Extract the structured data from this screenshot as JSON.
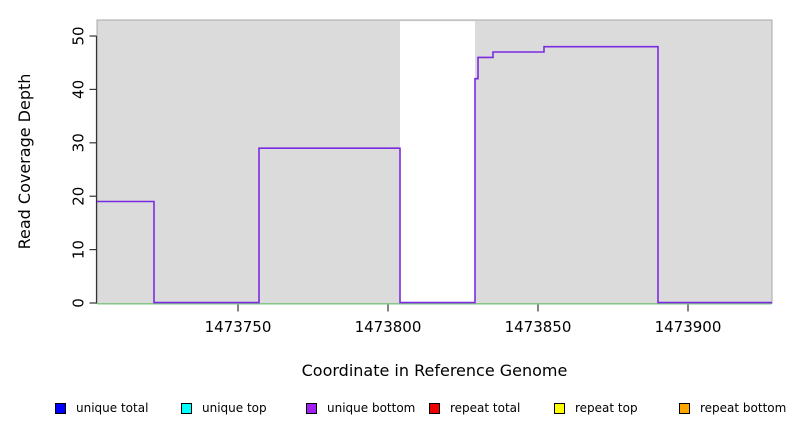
{
  "figure_title": "",
  "colors": {
    "plot_background": "#DBDBDB",
    "plot_border": "#A8A8A8",
    "masked_band_fill": "#FFFFFF",
    "coverage_line": "#7B2BE2",
    "zero_baseline": "#7CCD7C",
    "axis_color": "#333333",
    "text_color": "#000000",
    "unique_total": "#0000FF",
    "unique_top": "#00FFFF",
    "unique_bottom": "#A020F0",
    "repeat_total": "#EE0000",
    "repeat_top": "#FFFF00",
    "repeat_bottom": "#FFA500"
  },
  "chart_data": {
    "type": "line",
    "subtype": "step-coverage",
    "title": "",
    "xlabel": "Coordinate in Reference Genome",
    "ylabel": "Read Coverage Depth",
    "xlim": [
      1473703,
      1473928
    ],
    "ylim": [
      0,
      53
    ],
    "x_ticks": [
      1473750,
      1473800,
      1473850,
      1473900
    ],
    "x_tick_labels": [
      "1473750",
      "1473800",
      "1473850",
      "1473900"
    ],
    "y_ticks": [
      0,
      10,
      20,
      30,
      40,
      50
    ],
    "y_tick_labels": [
      "0",
      "10",
      "20",
      "30",
      "40",
      "50"
    ],
    "grid": false,
    "legend_position": "bottom",
    "masked_region": {
      "from": 1473804,
      "to": 1473829
    },
    "series": [
      {
        "name": "unique bottom",
        "style": "step",
        "color_key": "coverage_line",
        "segments": [
          {
            "from": 1473703,
            "to": 1473722,
            "value": 19
          },
          {
            "from": 1473722,
            "to": 1473757,
            "value": 0
          },
          {
            "from": 1473757,
            "to": 1473804,
            "value": 29
          },
          {
            "from": 1473804,
            "to": 1473829,
            "value": 0
          },
          {
            "from": 1473829,
            "to": 1473830,
            "value": 42
          },
          {
            "from": 1473830,
            "to": 1473835,
            "value": 46
          },
          {
            "from": 1473835,
            "to": 1473852,
            "value": 47
          },
          {
            "from": 1473852,
            "to": 1473890,
            "value": 48
          },
          {
            "from": 1473890,
            "to": 1473928,
            "value": 0
          }
        ]
      },
      {
        "name": "zero baseline",
        "style": "flat",
        "color_key": "zero_baseline",
        "value": 0,
        "from": 1473703,
        "to": 1473928
      }
    ]
  },
  "legend": {
    "items": [
      {
        "label": "unique total",
        "color_key": "unique_total"
      },
      {
        "label": "unique top",
        "color_key": "unique_top"
      },
      {
        "label": "unique bottom",
        "color_key": "unique_bottom"
      },
      {
        "label": "repeat total",
        "color_key": "repeat_total"
      },
      {
        "label": "repeat top",
        "color_key": "repeat_top"
      },
      {
        "label": "repeat bottom",
        "color_key": "repeat_bottom"
      }
    ]
  }
}
